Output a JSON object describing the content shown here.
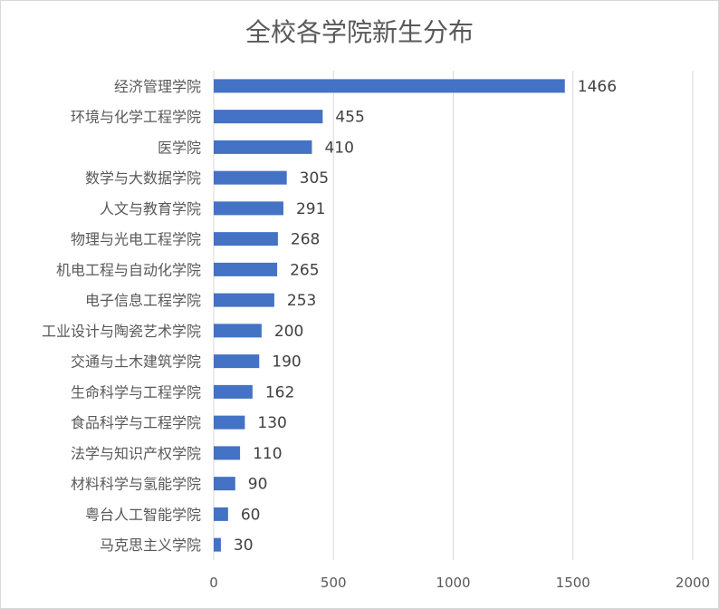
{
  "chart_data": {
    "type": "bar",
    "orientation": "horizontal",
    "title": "全校各学院新生分布",
    "categories": [
      "经济管理学院",
      "环境与化学工程学院",
      "医学院",
      "数学与大数据学院",
      "人文与教育学院",
      "物理与光电工程学院",
      "机电工程与自动化学院",
      "电子信息工程学院",
      "工业设计与陶瓷艺术学院",
      "交通与土木建筑学院",
      "生命科学与工程学院",
      "食品科学与工程学院",
      "法学与知识产权学院",
      "材料科学与氢能学院",
      "粤台人工智能学院",
      "马克思主义学院"
    ],
    "values": [
      1466,
      455,
      410,
      305,
      291,
      268,
      265,
      253,
      200,
      190,
      162,
      130,
      110,
      90,
      60,
      30
    ],
    "xlim": [
      0,
      2000
    ],
    "xticks": [
      0,
      500,
      1000,
      1500,
      2000
    ],
    "grid": true,
    "legend": "none",
    "bar_color": "#4472c4",
    "grid_color": "#d9d9d9"
  }
}
